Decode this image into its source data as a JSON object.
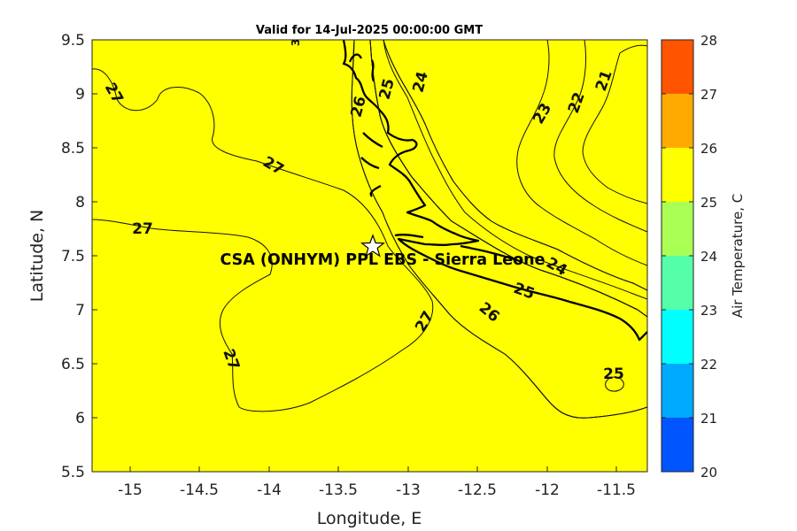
{
  "map": {
    "title": "Valid for 14-Jul-2025 00:00:00 GMT",
    "xlabel": "Longitude, E",
    "ylabel": "Latitude, N",
    "x_ticks": [
      "-15",
      "-14.5",
      "-14",
      "-13.5",
      "-13",
      "-12.5",
      "-12",
      "-11.5"
    ],
    "y_ticks": [
      "9.5",
      "9",
      "8.5",
      "8",
      "7.5",
      "7",
      "6.5",
      "6",
      "5.5"
    ],
    "site": {
      "label": "CSA (ONHYM) PPL EBS  - Sierra Leone",
      "lon": -13.25,
      "lat": 7.6,
      "marker": "star-icon"
    },
    "contour_labels": [
      "27",
      "27",
      "27",
      "27",
      "27",
      "26",
      "25",
      "24",
      "23",
      "22",
      "21",
      "24",
      "25",
      "26",
      "25",
      "3"
    ],
    "colors": {
      "band_20_21": "#0000ff",
      "band_21_22": "#0055ff",
      "band_22_23": "#00aaff",
      "band_23_24": "#00ffff",
      "band_24_25": "#55ffaa",
      "band_25_26": "#aaff55",
      "band_26_27": "#ffff00",
      "band_27_28": "#ffaa00",
      "band_28_plus": "#ff5500"
    }
  },
  "colorbar": {
    "label": "Air Temperature, C",
    "ticks": [
      "28",
      "27",
      "26",
      "25",
      "24",
      "23",
      "22",
      "21",
      "20"
    ],
    "colors": [
      "#ff5500",
      "#ffaa00",
      "#ffff00",
      "#aaff55",
      "#55ffaa",
      "#00ffff",
      "#00aaff",
      "#0055ff",
      "#0000ff"
    ]
  },
  "chart_data": {
    "type": "heatmap",
    "title": "Valid for 14-Jul-2025 00:00:00 GMT",
    "xlabel": "Longitude, E",
    "ylabel": "Latitude, N",
    "xlim": [
      -15.25,
      -11.25
    ],
    "ylim": [
      5.5,
      9.5
    ],
    "colorbar_label": "Air Temperature, C",
    "colorbar_range": [
      20,
      28
    ],
    "contour_levels": [
      21,
      22,
      23,
      24,
      25,
      26,
      27
    ],
    "grid": false
  }
}
